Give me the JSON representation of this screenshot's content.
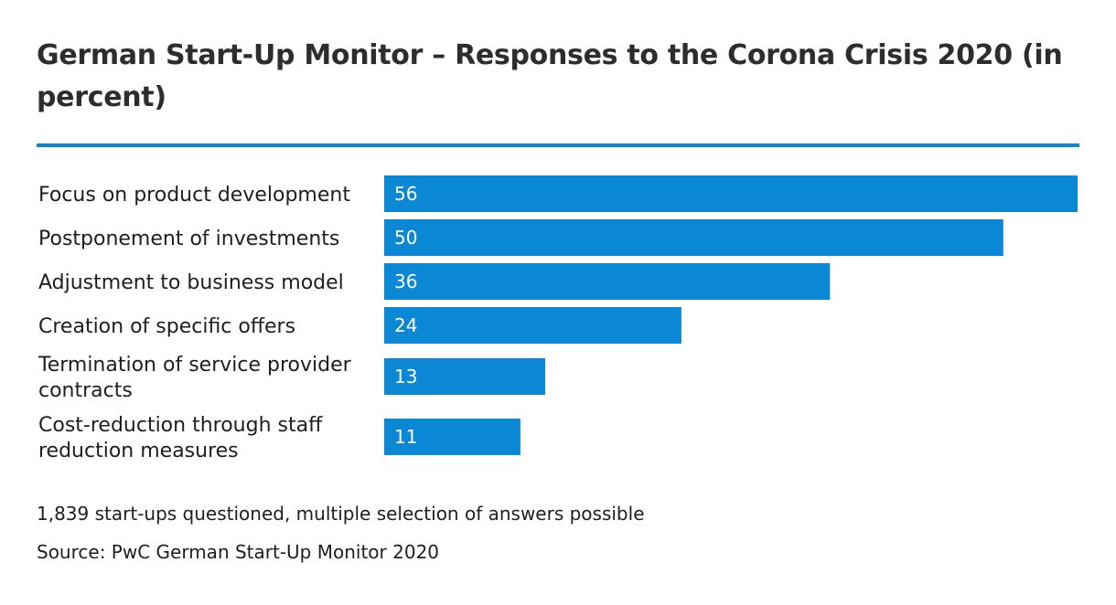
{
  "chart_data": {
    "type": "bar",
    "orientation": "horizontal",
    "title": "German Start-Up Monitor – Responses to the Corona Crisis 2020 (in percent)",
    "categories": [
      "Focus on product development",
      "Postponement of investments",
      "Adjustment to business model",
      "Creation of specific offers",
      "Termination of service provider contracts",
      "Cost-reduction through staff reduction measures"
    ],
    "category_lines": [
      [
        "Focus on product development"
      ],
      [
        "Postponement of investments"
      ],
      [
        "Adjustment to business model"
      ],
      [
        "Creation of specific offers"
      ],
      [
        "Termination of service provider",
        "contracts"
      ],
      [
        "Cost-reduction through staff",
        "reduction measures"
      ]
    ],
    "values": [
      56,
      50,
      36,
      24,
      13,
      11
    ],
    "xlim": [
      0,
      56
    ],
    "data_labels": true,
    "grid": false,
    "legend": "none",
    "bar_color": "#0a88d6",
    "xlabel": "",
    "ylabel": ""
  },
  "notes": {
    "sample": "1,839 start-ups questioned, multiple selection of answers possible",
    "source": "Source: PwC German Start-Up Monitor 2020"
  },
  "colors": {
    "accent": "#0a88d6",
    "text": "#2d2d2d"
  }
}
